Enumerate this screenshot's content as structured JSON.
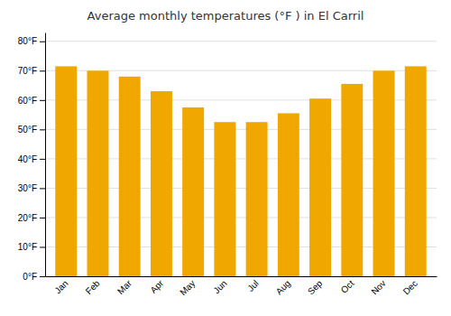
{
  "chart_data": {
    "type": "bar",
    "title": "Average monthly temperatures (°F ) in El Carril",
    "categories": [
      "Jan",
      "Feb",
      "Mar",
      "Apr",
      "May",
      "Jun",
      "Jul",
      "Aug",
      "Sep",
      "Oct",
      "Nov",
      "Dec"
    ],
    "values": [
      71.5,
      70.0,
      68.0,
      63.0,
      57.5,
      52.5,
      52.5,
      55.5,
      60.5,
      65.5,
      70.0,
      71.5
    ],
    "color": "#F0A800",
    "ylim": [
      0,
      83
    ],
    "yticks": [
      {
        "value": 0,
        "label": "0°F"
      },
      {
        "value": 10,
        "label": "10°F"
      },
      {
        "value": 20,
        "label": "20°F"
      },
      {
        "value": 30,
        "label": "30°F"
      },
      {
        "value": 40,
        "label": "40°F"
      },
      {
        "value": 50,
        "label": "50°F"
      },
      {
        "value": 60,
        "label": "60°F"
      },
      {
        "value": 70,
        "label": "70°F"
      },
      {
        "value": 80,
        "label": "80°F"
      }
    ],
    "grid": true
  }
}
